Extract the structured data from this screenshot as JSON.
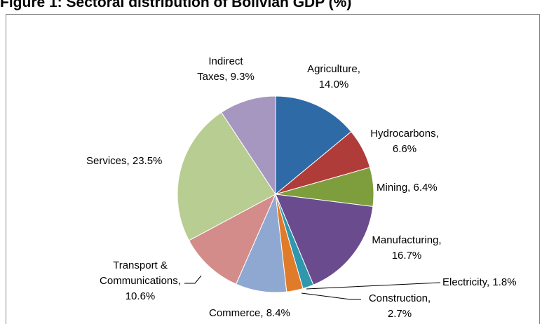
{
  "chart_data": {
    "type": "pie",
    "title": "Figure 1: Sectoral distribution of Bolivian GDP (%)",
    "categories": [
      "Agriculture,",
      "Hydrocarbons,",
      "Mining,",
      "Manufacturing,",
      "Electricity,",
      "Construction,",
      "Commerce,",
      "Transport & Communications,",
      "Services,",
      "Indirect Taxes,"
    ],
    "values": [
      14.0,
      6.6,
      6.4,
      16.7,
      1.8,
      2.7,
      8.4,
      10.6,
      23.5,
      9.3
    ],
    "value_labels": [
      "14.0%",
      "6.6%",
      "6.4%",
      "16.7%",
      "1.8%",
      "2.7%",
      "8.4%",
      "10.6%",
      "23.5%",
      "9.3%"
    ],
    "colors": [
      "#2e6aa6",
      "#b03c3a",
      "#7e9d3c",
      "#6a4c8e",
      "#2f97ae",
      "#e07b2a",
      "#8fa8d2",
      "#d48c8a",
      "#b8cd92",
      "#a597bf"
    ]
  }
}
